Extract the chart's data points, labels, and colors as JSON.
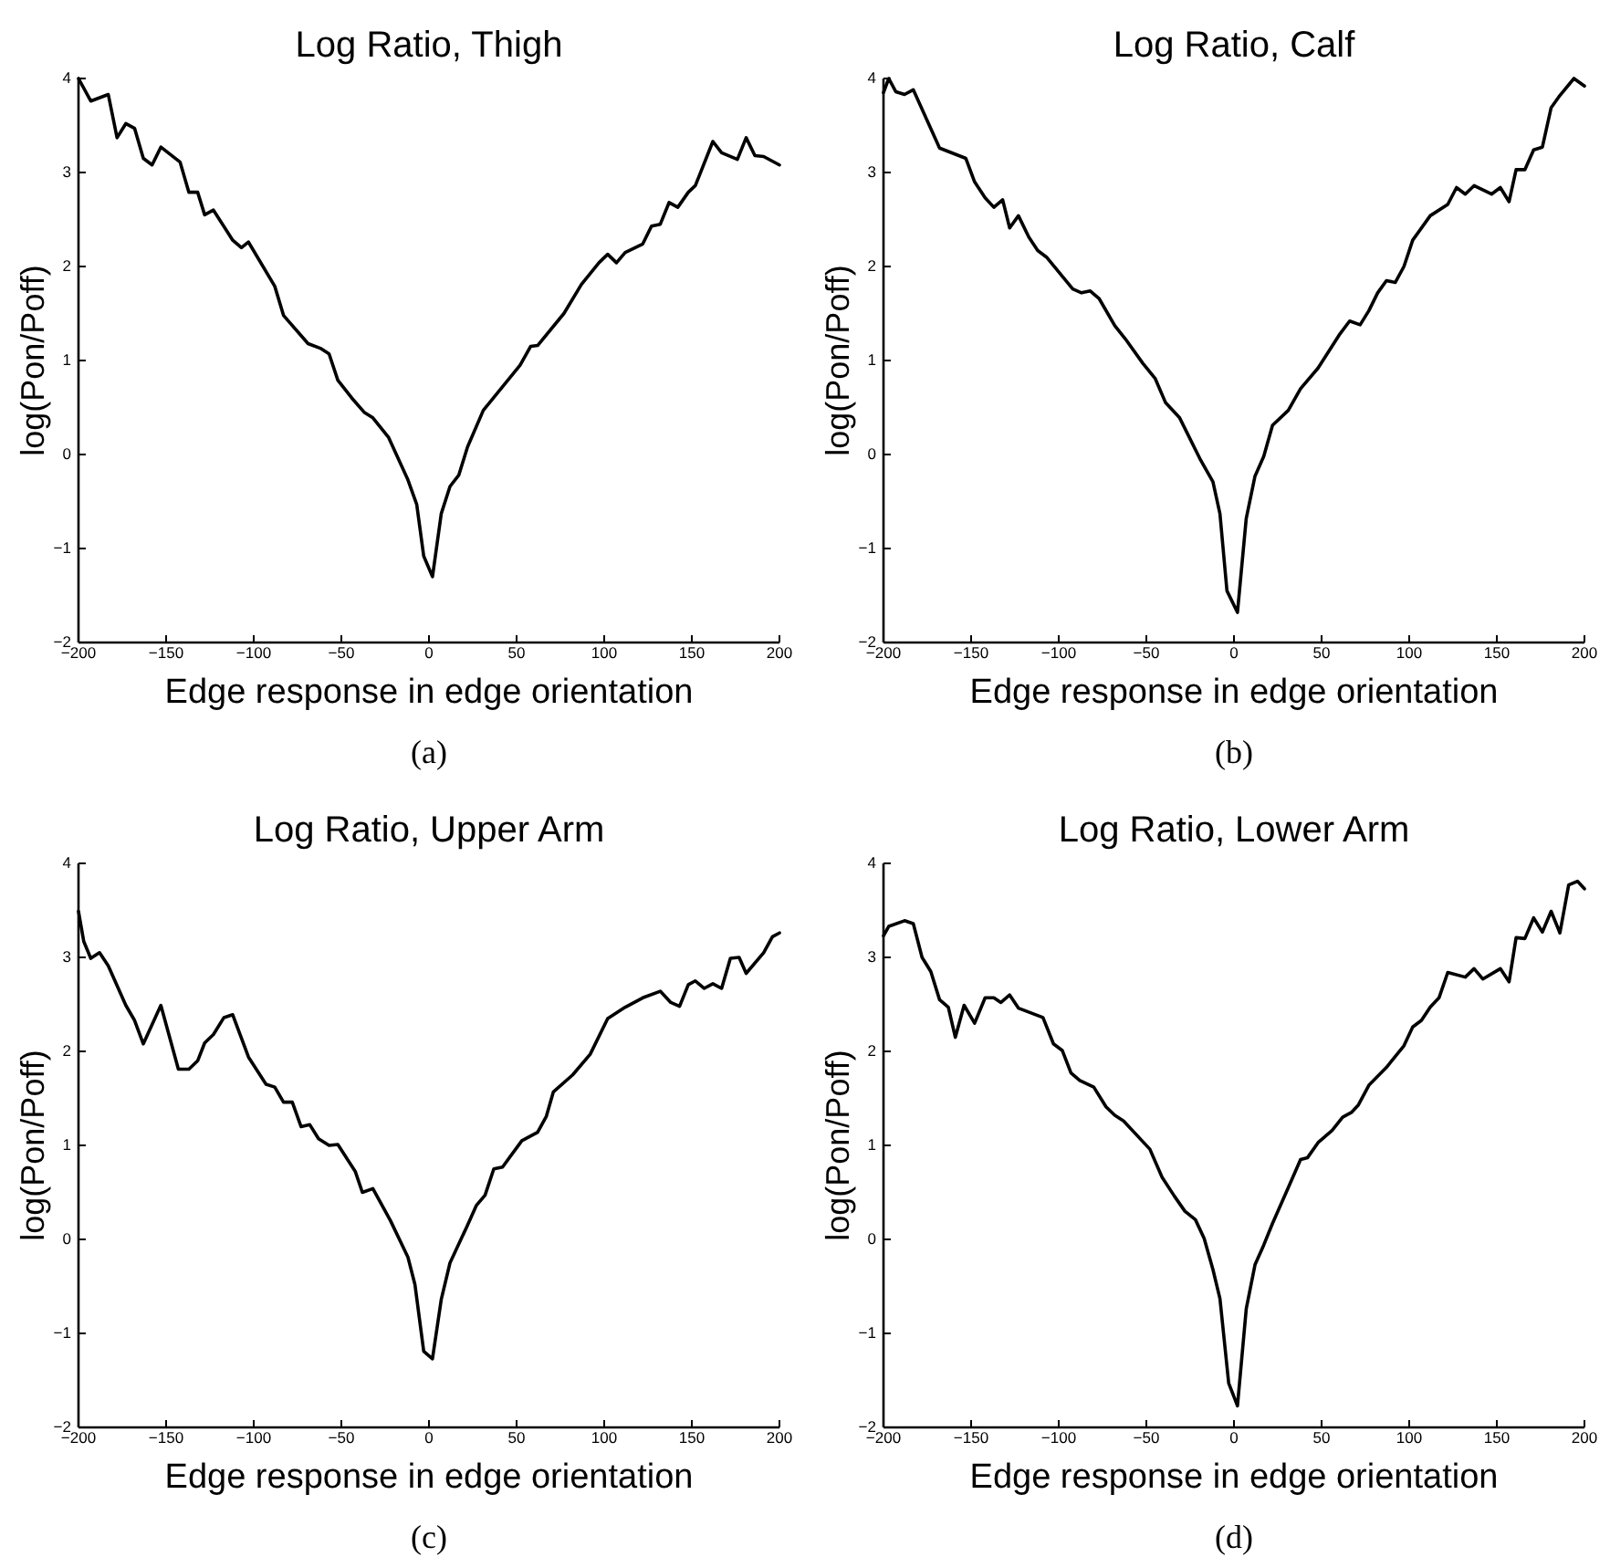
{
  "chart_data": [
    {
      "type": "line",
      "title": "Log Ratio, Thigh",
      "xlabel": "Edge response in edge orientation",
      "ylabel": "log(Pon/Poff)",
      "annotations": [
        "(a)"
      ],
      "color": "#000000",
      "xlim": [
        -200,
        200
      ],
      "ylim": [
        -2,
        4
      ],
      "xticks": [
        -200,
        -150,
        -100,
        -50,
        0,
        50,
        100,
        150,
        200
      ],
      "yticks": [
        -2,
        -1,
        0,
        1,
        2,
        3,
        4
      ],
      "x": [
        -200,
        -193,
        -183,
        -178,
        -173,
        -168,
        -163,
        -158,
        -153,
        -142,
        -137,
        -132,
        -128,
        -123,
        -112,
        -107,
        -103,
        -88,
        -83,
        -69,
        -62,
        -57,
        -52,
        -44,
        -37,
        -32,
        -23,
        -12,
        -7,
        -3,
        2,
        7,
        12,
        17,
        22,
        31,
        45,
        52,
        58,
        62,
        77,
        87,
        97,
        102,
        107,
        112,
        122,
        127,
        132,
        137,
        142,
        148,
        152,
        162,
        167,
        176,
        181,
        186,
        191,
        200
      ],
      "values": [
        4.0,
        3.76,
        3.83,
        3.37,
        3.52,
        3.47,
        3.15,
        3.08,
        3.27,
        3.11,
        2.79,
        2.79,
        2.55,
        2.6,
        2.28,
        2.2,
        2.26,
        1.79,
        1.48,
        1.18,
        1.13,
        1.07,
        0.79,
        0.6,
        0.45,
        0.39,
        0.18,
        -0.27,
        -0.53,
        -1.08,
        -1.3,
        -0.63,
        -0.34,
        -0.22,
        0.08,
        0.47,
        0.79,
        0.95,
        1.15,
        1.16,
        1.5,
        1.81,
        2.04,
        2.13,
        2.04,
        2.15,
        2.24,
        2.43,
        2.45,
        2.68,
        2.63,
        2.79,
        2.86,
        3.33,
        3.21,
        3.14,
        3.37,
        3.18,
        3.17,
        3.08
      ]
    },
    {
      "type": "line",
      "title": "Log Ratio, Calf",
      "xlabel": "Edge response in edge orientation",
      "ylabel": "log(Pon/Poff)",
      "annotations": [
        "(b)"
      ],
      "color": "#000000",
      "xlim": [
        -200,
        200
      ],
      "ylim": [
        -2,
        4
      ],
      "xticks": [
        -200,
        -150,
        -100,
        -50,
        0,
        50,
        100,
        150,
        200
      ],
      "yticks": [
        -2,
        -1,
        0,
        1,
        2,
        3,
        4
      ],
      "x": [
        -200,
        -197,
        -193,
        -188,
        -183,
        -168,
        -153,
        -148,
        -142,
        -137,
        -132,
        -128,
        -123,
        -117,
        -112,
        -107,
        -92,
        -87,
        -82,
        -77,
        -68,
        -62,
        -52,
        -45,
        -39,
        -31,
        -19,
        -12,
        -8,
        -4,
        2,
        7,
        12,
        17,
        22,
        31,
        38,
        48,
        60,
        66,
        72,
        77,
        82,
        87,
        92,
        97,
        102,
        112,
        122,
        127,
        132,
        137,
        147,
        152,
        157,
        161,
        166,
        171,
        176,
        181,
        186,
        194,
        200
      ],
      "values": [
        3.85,
        4.0,
        3.86,
        3.83,
        3.88,
        3.26,
        3.15,
        2.9,
        2.73,
        2.63,
        2.71,
        2.41,
        2.54,
        2.31,
        2.17,
        2.1,
        1.76,
        1.72,
        1.74,
        1.66,
        1.37,
        1.23,
        0.97,
        0.81,
        0.55,
        0.39,
        -0.06,
        -0.29,
        -0.63,
        -1.45,
        -1.68,
        -0.68,
        -0.23,
        -0.02,
        0.31,
        0.47,
        0.7,
        0.92,
        1.27,
        1.42,
        1.38,
        1.53,
        1.72,
        1.85,
        1.83,
        2.0,
        2.28,
        2.54,
        2.66,
        2.84,
        2.77,
        2.86,
        2.77,
        2.84,
        2.69,
        3.03,
        3.03,
        3.24,
        3.27,
        3.69,
        3.82,
        4.0,
        3.92
      ]
    },
    {
      "type": "line",
      "title": "Log Ratio, Upper Arm",
      "xlabel": "Edge response in edge orientation",
      "ylabel": "log(Pon/Poff)",
      "annotations": [
        "(c)"
      ],
      "color": "#000000",
      "xlim": [
        -200,
        200
      ],
      "ylim": [
        -2,
        4
      ],
      "xticks": [
        -200,
        -150,
        -100,
        -50,
        0,
        50,
        100,
        150,
        200
      ],
      "yticks": [
        -2,
        -1,
        0,
        1,
        2,
        3,
        4
      ],
      "x": [
        -200,
        -197,
        -193,
        -188,
        -183,
        -173,
        -168,
        -163,
        -153,
        -143,
        -137,
        -132,
        -128,
        -123,
        -117,
        -112,
        -103,
        -93,
        -88,
        -83,
        -78,
        -73,
        -68,
        -63,
        -57,
        -52,
        -42,
        -38,
        -32,
        -22,
        -12,
        -8,
        -3,
        2,
        7,
        12,
        22,
        27,
        32,
        37,
        42,
        53,
        62,
        67,
        71,
        82,
        92,
        102,
        112,
        122,
        132,
        138,
        143,
        148,
        152,
        157,
        162,
        167,
        172,
        177,
        181,
        191,
        196,
        200
      ],
      "values": [
        3.49,
        3.17,
        2.99,
        3.05,
        2.91,
        2.49,
        2.33,
        2.08,
        2.49,
        1.81,
        1.81,
        1.9,
        2.09,
        2.18,
        2.36,
        2.39,
        1.94,
        1.65,
        1.62,
        1.46,
        1.46,
        1.2,
        1.22,
        1.07,
        1.0,
        1.01,
        0.72,
        0.5,
        0.54,
        0.2,
        -0.19,
        -0.48,
        -1.19,
        -1.27,
        -0.64,
        -0.25,
        0.15,
        0.36,
        0.47,
        0.75,
        0.77,
        1.05,
        1.14,
        1.31,
        1.57,
        1.75,
        1.97,
        2.35,
        2.47,
        2.57,
        2.64,
        2.52,
        2.48,
        2.71,
        2.75,
        2.67,
        2.72,
        2.67,
        2.99,
        3.0,
        2.83,
        3.05,
        3.22,
        3.26
      ]
    },
    {
      "type": "line",
      "title": "Log Ratio, Lower Arm",
      "xlabel": "Edge response in edge orientation",
      "ylabel": "log(Pon/Poff)",
      "annotations": [
        "(d)"
      ],
      "color": "#000000",
      "xlim": [
        -200,
        200
      ],
      "ylim": [
        -2,
        4
      ],
      "xticks": [
        -200,
        -150,
        -100,
        -50,
        0,
        50,
        100,
        150,
        200
      ],
      "yticks": [
        -2,
        -1,
        0,
        1,
        2,
        3,
        4
      ],
      "x": [
        -200,
        -197,
        -188,
        -183,
        -178,
        -173,
        -168,
        -163,
        -159,
        -154,
        -148,
        -142,
        -137,
        -133,
        -128,
        -123,
        -109,
        -103,
        -98,
        -93,
        -88,
        -80,
        -73,
        -68,
        -63,
        -52,
        -48,
        -41,
        -34,
        -28,
        -22,
        -17,
        -12,
        -8,
        -3,
        2,
        7,
        12,
        17,
        22,
        31,
        38,
        42,
        48,
        56,
        62,
        67,
        71,
        77,
        87,
        97,
        102,
        107,
        112,
        117,
        122,
        132,
        137,
        142,
        152,
        157,
        161,
        166,
        171,
        176,
        181,
        186,
        191,
        196,
        200
      ],
      "values": [
        3.23,
        3.33,
        3.39,
        3.36,
        3.0,
        2.85,
        2.55,
        2.47,
        2.15,
        2.49,
        2.3,
        2.57,
        2.57,
        2.52,
        2.6,
        2.46,
        2.36,
        2.08,
        2.01,
        1.77,
        1.69,
        1.62,
        1.41,
        1.32,
        1.26,
        1.04,
        0.96,
        0.66,
        0.46,
        0.3,
        0.21,
        0.01,
        -0.32,
        -0.63,
        -1.53,
        -1.77,
        -0.74,
        -0.27,
        -0.06,
        0.17,
        0.55,
        0.85,
        0.87,
        1.03,
        1.16,
        1.3,
        1.35,
        1.43,
        1.64,
        1.83,
        2.06,
        2.26,
        2.33,
        2.47,
        2.57,
        2.84,
        2.79,
        2.88,
        2.77,
        2.88,
        2.74,
        3.21,
        3.2,
        3.42,
        3.27,
        3.49,
        3.26,
        3.77,
        3.81,
        3.73
      ]
    }
  ]
}
